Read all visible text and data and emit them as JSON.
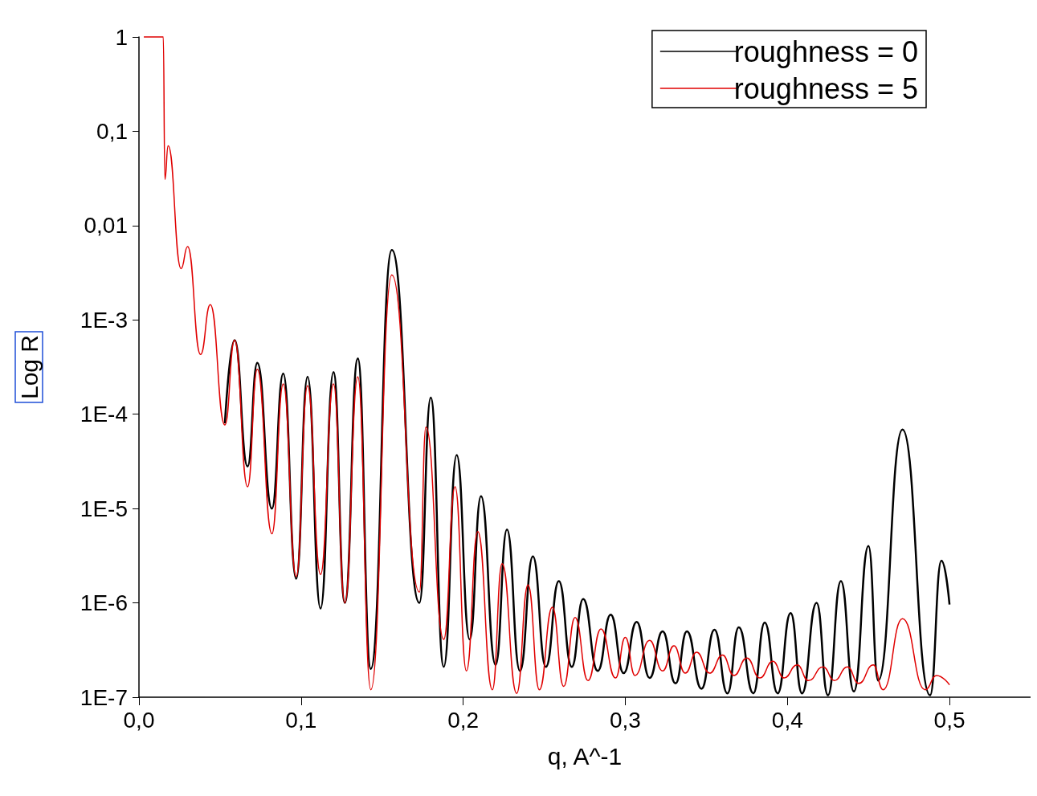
{
  "chart_data": {
    "type": "line",
    "xlabel": "q, A^-1",
    "ylabel": "Log R",
    "log": "y",
    "grid": false,
    "legend": "top right",
    "marker": "none",
    "line_style": "solid",
    "xlim": [
      0,
      0.55
    ],
    "xticks": [
      {
        "value": 0,
        "label": "0,0"
      },
      {
        "value": 0.1,
        "label": "0,1"
      },
      {
        "value": 0.2,
        "label": "0,2"
      },
      {
        "value": 0.3,
        "label": "0,3"
      },
      {
        "value": 0.4,
        "label": "0,4"
      },
      {
        "value": 0.5,
        "label": "0,5"
      }
    ],
    "ylim": [
      1e-07,
      1
    ],
    "yticks": [
      {
        "value": 1,
        "label": "1"
      },
      {
        "value": 0.1,
        "label": "0,1"
      },
      {
        "value": 0.01,
        "label": "0,01"
      },
      {
        "value": 0.001,
        "label": "1E-3"
      },
      {
        "value": 0.0001,
        "label": "1E-4"
      },
      {
        "value": 1e-05,
        "label": "1E-5"
      },
      {
        "value": 1e-06,
        "label": "1E-6"
      },
      {
        "value": 1e-07,
        "label": "1E-7"
      }
    ],
    "series": [
      {
        "name": "roughness = 0",
        "color": "#000000",
        "x": [
          0.053,
          0.059,
          0.067,
          0.073,
          0.082,
          0.089,
          0.097,
          0.104,
          0.112,
          0.12,
          0.127,
          0.135,
          0.143,
          0.156,
          0.173,
          0.18,
          0.188,
          0.196,
          0.204,
          0.211,
          0.22,
          0.227,
          0.235,
          0.243,
          0.251,
          0.259,
          0.267,
          0.274,
          0.283,
          0.291,
          0.299,
          0.307,
          0.315,
          0.323,
          0.331,
          0.338,
          0.347,
          0.355,
          0.363,
          0.37,
          0.379,
          0.386,
          0.394,
          0.402,
          0.409,
          0.418,
          0.425,
          0.433,
          0.441,
          0.45,
          0.456,
          0.471,
          0.488,
          0.495,
          0.5
        ],
        "values": [
          8e-05,
          0.00061,
          2.8e-05,
          0.00035,
          1e-05,
          0.00027,
          1.8e-06,
          0.00025,
          8.7e-07,
          0.00028,
          1e-06,
          0.00039,
          2e-07,
          0.0055,
          1e-06,
          0.00015,
          2.1e-07,
          3.7e-05,
          4.1e-07,
          1.35e-05,
          2.2e-07,
          6e-06,
          1.9e-07,
          3.1e-06,
          2.1e-07,
          1.7e-06,
          2.1e-07,
          1.1e-06,
          1.9e-07,
          7.5e-07,
          1.8e-07,
          6.3e-07,
          1.6e-07,
          5e-07,
          1.4e-07,
          5e-07,
          1.23e-07,
          5.2e-07,
          1.1e-07,
          5.5e-07,
          1.1e-07,
          6.2e-07,
          1.1e-07,
          7.8e-07,
          1.1e-07,
          1e-06,
          1.05e-07,
          1.7e-06,
          1.15e-07,
          4e-06,
          1.5e-07,
          6.9e-05,
          1.05e-07,
          2.8e-06,
          9.6e-07
        ]
      },
      {
        "name": "roughness = 5",
        "color": "#e00000",
        "x": [
          0.003,
          0.015,
          0.016,
          0.018,
          0.026,
          0.03,
          0.038,
          0.044,
          0.053,
          0.059,
          0.067,
          0.073,
          0.082,
          0.089,
          0.097,
          0.104,
          0.112,
          0.12,
          0.127,
          0.135,
          0.143,
          0.156,
          0.173,
          0.177,
          0.188,
          0.195,
          0.202,
          0.209,
          0.218,
          0.224,
          0.233,
          0.24,
          0.247,
          0.255,
          0.262,
          0.269,
          0.277,
          0.285,
          0.294,
          0.3,
          0.306,
          0.315,
          0.323,
          0.33,
          0.337,
          0.344,
          0.352,
          0.36,
          0.367,
          0.375,
          0.383,
          0.391,
          0.398,
          0.406,
          0.413,
          0.422,
          0.429,
          0.437,
          0.444,
          0.453,
          0.459,
          0.471,
          0.485,
          0.492,
          0.5
        ],
        "values": [
          1,
          1,
          0.031,
          0.07,
          0.0035,
          0.006,
          0.00043,
          0.00145,
          7.7e-05,
          0.00061,
          1.7e-05,
          0.0003,
          5.4e-06,
          0.00021,
          1.9e-06,
          0.0002,
          2e-06,
          0.00021,
          1e-06,
          0.00025,
          1.2e-07,
          0.003,
          1.3e-06,
          7.3e-05,
          4.1e-07,
          1.7e-05,
          1.9e-07,
          5.7e-06,
          1.2e-07,
          2.6e-06,
          1.1e-07,
          1.55e-06,
          1.2e-07,
          9e-07,
          1.3e-07,
          7e-07,
          1.5e-07,
          5.3e-07,
          1.6e-07,
          4.3e-07,
          1.7e-07,
          4e-07,
          1.9e-07,
          3.5e-07,
          1.8e-07,
          3e-07,
          1.8e-07,
          2.8e-07,
          1.7e-07,
          2.6e-07,
          1.6e-07,
          2.4e-07,
          1.6e-07,
          2.2e-07,
          1.5e-07,
          2.1e-07,
          1.5e-07,
          2.1e-07,
          1.4e-07,
          2.2e-07,
          1.2e-07,
          6.8e-07,
          1.2e-07,
          1.7e-07,
          1.35e-07
        ]
      }
    ]
  }
}
